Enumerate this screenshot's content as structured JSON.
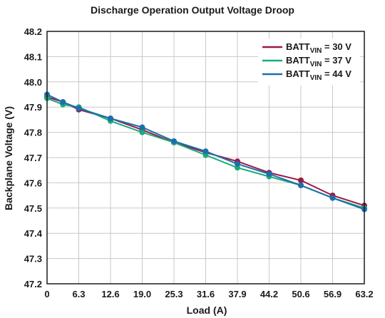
{
  "chart_data": {
    "type": "line",
    "title": "Discharge Operation Output Voltage Droop",
    "xlabel": "Load (A)",
    "ylabel": "Backplane Voltage (V)",
    "x_ticks": [
      "0",
      "6.3",
      "12.6",
      "19.0",
      "25.3",
      "31.6",
      "37.9",
      "44.2",
      "50.6",
      "56.9",
      "63.2"
    ],
    "y_ticks": [
      "47.2",
      "47.3",
      "47.4",
      "47.5",
      "47.6",
      "47.7",
      "47.8",
      "47.9",
      "48.0",
      "48.1",
      "48.2"
    ],
    "xlim": [
      0,
      63.2
    ],
    "ylim": [
      47.2,
      48.2
    ],
    "grid": true,
    "legend_position": "top-right",
    "series": [
      {
        "name": "BATT_VIN = 30 V",
        "legend_main": "BATT",
        "legend_sub": "VIN",
        "legend_suffix": " = 30 V",
        "color": "#9b1b45",
        "x": [
          0,
          3.16,
          6.32,
          12.64,
          18.96,
          25.28,
          31.6,
          37.92,
          44.24,
          50.56,
          56.88,
          63.2
        ],
        "y": [
          47.94,
          47.92,
          47.89,
          47.855,
          47.81,
          47.76,
          47.72,
          47.685,
          47.64,
          47.61,
          47.55,
          47.51
        ]
      },
      {
        "name": "BATT_VIN = 37 V",
        "legend_main": "BATT",
        "legend_sub": "VIN",
        "legend_suffix": " = 37 V",
        "color": "#1aaa7a",
        "x": [
          0,
          3.16,
          6.32,
          12.64,
          18.96,
          25.28,
          31.6,
          37.92,
          44.24,
          50.56,
          56.88,
          63.2
        ],
        "y": [
          47.935,
          47.91,
          47.9,
          47.845,
          47.8,
          47.76,
          47.71,
          47.66,
          47.625,
          47.59,
          47.54,
          47.5
        ]
      },
      {
        "name": "BATT_VIN = 44 V",
        "legend_main": "BATT",
        "legend_sub": "VIN",
        "legend_suffix": " = 44 V",
        "color": "#1b6fae",
        "x": [
          0,
          3.16,
          6.32,
          12.64,
          18.96,
          25.28,
          31.6,
          37.92,
          44.24,
          50.56,
          56.88,
          63.2
        ],
        "y": [
          47.95,
          47.92,
          47.895,
          47.855,
          47.82,
          47.765,
          47.725,
          47.675,
          47.635,
          47.59,
          47.54,
          47.495
        ]
      }
    ]
  }
}
